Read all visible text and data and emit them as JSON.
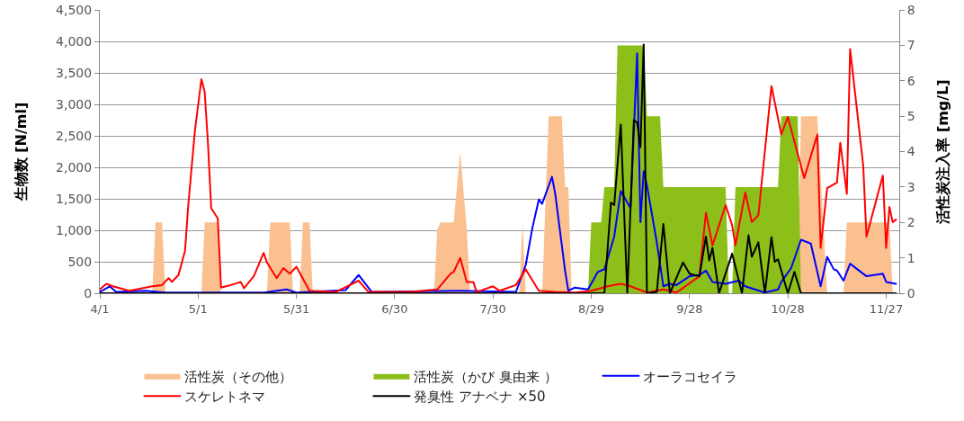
{
  "chart_data": {
    "type": "line",
    "ylabel": "生物数 [N/ml]",
    "y2label": "活性炭注入率 [mg/L]",
    "xlim": [
      "--04-01",
      "--12-01"
    ],
    "xticks": [
      {
        "value": "--04-01",
        "label": "4/1"
      },
      {
        "value": "--05-01",
        "label": "5/1"
      },
      {
        "value": "--05-31",
        "label": "5/31"
      },
      {
        "value": "--06-30",
        "label": "6/30"
      },
      {
        "value": "--07-30",
        "label": "7/30"
      },
      {
        "value": "--08-29",
        "label": "8/29"
      },
      {
        "value": "--09-28",
        "label": "9/28"
      },
      {
        "value": "--10-28",
        "label": "10/28"
      },
      {
        "value": "--11-27",
        "label": "11/27"
      }
    ],
    "ylim": [
      0,
      4500
    ],
    "yticks": [
      0,
      500,
      {
        "value": 1000,
        "label": "1,000"
      },
      {
        "value": 1500,
        "label": "1,500"
      },
      {
        "value": 2000,
        "label": "2,000"
      },
      {
        "value": 2500,
        "label": "2,500"
      },
      {
        "value": 3000,
        "label": "3,000"
      },
      {
        "value": 3500,
        "label": "3,500"
      },
      {
        "value": 4000,
        "label": "4,000"
      },
      {
        "value": 4500,
        "label": "4,500"
      }
    ],
    "y2lim": [
      0,
      8
    ],
    "y2ticks": [
      0,
      1,
      2,
      3,
      4,
      5,
      6,
      7,
      8
    ],
    "grid": "y",
    "legend": "bottom",
    "series": [
      {
        "name": "活性炭（その他）",
        "type": "area",
        "axis": "y2",
        "color": "#fac090",
        "x": [
          "--04-17",
          "--04-18",
          "--04-20",
          "--04-21",
          "--05-02",
          "--05-03",
          "--05-07",
          "--05-08",
          "--05-22",
          "--05-23",
          "--05-29",
          "--05-30",
          "--06-01",
          "--06-02",
          "--06-04",
          "--06-05",
          "--07-12",
          "--07-13",
          "--07-14",
          "--07-18",
          "--07-20",
          "--07-22",
          "--07-23",
          "--08-07",
          "--08-08",
          "--08-09",
          "--08-14",
          "--08-16",
          "--08-20",
          "--08-21",
          "--08-22",
          "--08-23",
          "--10-31",
          "--11-01",
          "--11-06",
          "--11-09",
          "--11-14",
          "--11-15",
          "--11-28",
          "--11-29"
        ],
        "values": [
          0,
          2,
          2,
          0,
          0,
          2,
          2,
          0,
          0,
          2,
          2,
          0,
          0,
          2,
          2,
          0,
          0,
          1.8,
          2,
          2,
          4,
          1.8,
          0,
          0,
          2,
          0,
          0,
          5,
          5,
          3,
          3,
          0,
          0,
          5,
          5,
          0,
          0,
          2,
          2,
          0
        ]
      },
      {
        "name": "活性炭（かび 臭由来 ）",
        "type": "area",
        "axis": "y2",
        "color": "#8dbf1a",
        "x": [
          "--08-28",
          "--08-29",
          "--09-01",
          "--09-02",
          "--09-05",
          "--09-06",
          "--09-14",
          "--09-15",
          "--09-19",
          "--09-20",
          "--10-09",
          "--10-10",
          "--10-11",
          "--10-12",
          "--10-25",
          "--10-26",
          "--10-31",
          "--11-01"
        ],
        "values": [
          0,
          2,
          2,
          3,
          3,
          7,
          7,
          5,
          5,
          3,
          3,
          0,
          0,
          3,
          3,
          5,
          5,
          0
        ]
      },
      {
        "name": "オーラコセイラ",
        "color": "#0000ff",
        "x": [
          "--04-01",
          "--04-04",
          "--04-06",
          "--04-15",
          "--04-21",
          "--05-21",
          "--05-28",
          "--05-31",
          "--06-15",
          "--06-19",
          "--06-23",
          "--07-20",
          "--08-06",
          "--08-09",
          "--08-11",
          "--08-13",
          "--08-14",
          "--08-17",
          "--08-18",
          "--08-21",
          "--08-22",
          "--08-24",
          "--08-28",
          "--08-31",
          "--09-02",
          "--09-05",
          "--09-07",
          "--09-10",
          "--09-12",
          "--09-13",
          "--09-14",
          "--09-15",
          "--09-18",
          "--09-20",
          "--09-22",
          "--09-24",
          "--09-28",
          "--10-01",
          "--10-03",
          "--10-05",
          "--10-09",
          "--10-13",
          "--10-15",
          "--10-21",
          "--10-25",
          "--10-26",
          "--10-29",
          "--11-01",
          "--11-04",
          "--11-07",
          "--11-09",
          "--11-11",
          "--11-12",
          "--11-14",
          "--11-16",
          "--11-21",
          "--11-26",
          "--11-27",
          "--11-30"
        ],
        "values": [
          20,
          110,
          20,
          40,
          10,
          10,
          60,
          10,
          50,
          290,
          20,
          40,
          20,
          450,
          1030,
          1490,
          1420,
          1850,
          1580,
          360,
          40,
          90,
          60,
          340,
          380,
          900,
          1620,
          1350,
          3810,
          1130,
          1940,
          1710,
          810,
          110,
          150,
          130,
          270,
          290,
          360,
          180,
          150,
          200,
          110,
          10,
          60,
          180,
          400,
          850,
          790,
          110,
          580,
          380,
          360,
          200,
          470,
          270,
          310,
          180,
          150
        ]
      },
      {
        "name": "スケレトネマ",
        "color": "#ff0000",
        "x": [
          "--04-01",
          "--04-03",
          "--04-05",
          "--04-10",
          "--04-17",
          "--04-20",
          "--04-22",
          "--04-23",
          "--04-25",
          "--04-27",
          "--04-28",
          "--04-30",
          "--05-02",
          "--05-03",
          "--05-04",
          "--05-05",
          "--05-07",
          "--05-08",
          "--05-11",
          "--05-14",
          "--05-15",
          "--05-18",
          "--05-21",
          "--05-22",
          "--05-25",
          "--05-27",
          "--05-29",
          "--05-31",
          "--06-04",
          "--06-12",
          "--06-19",
          "--06-22",
          "--07-05",
          "--07-13",
          "--07-17",
          "--07-18",
          "--07-20",
          "--07-22",
          "--07-24",
          "--07-25",
          "--07-30",
          "--08-01",
          "--08-06",
          "--08-09",
          "--08-13",
          "--08-18",
          "--08-24",
          "--08-29",
          "--09-03",
          "--09-07",
          "--09-10",
          "--09-15",
          "--09-20",
          "--09-24",
          "--10-01",
          "--10-03",
          "--10-05",
          "--10-09",
          "--10-11",
          "--10-12",
          "--10-15",
          "--10-17",
          "--10-19",
          "--10-23",
          "--10-26",
          "--10-28",
          "--11-02",
          "--11-06",
          "--11-07",
          "--11-09",
          "--11-12",
          "--11-13",
          "--11-15",
          "--11-16",
          "--11-20",
          "--11-21",
          "--11-26",
          "--11-27",
          "--11-28",
          "--11-29",
          "--11-30"
        ],
        "values": [
          60,
          150,
          110,
          40,
          110,
          130,
          240,
          180,
          290,
          670,
          1400,
          2570,
          3400,
          3200,
          2390,
          1350,
          1190,
          90,
          130,
          180,
          80,
          270,
          640,
          490,
          240,
          400,
          310,
          420,
          40,
          20,
          200,
          20,
          20,
          60,
          310,
          340,
          560,
          180,
          180,
          20,
          110,
          40,
          130,
          380,
          40,
          20,
          10,
          40,
          110,
          150,
          110,
          10,
          60,
          10,
          270,
          1280,
          760,
          1400,
          1080,
          760,
          1600,
          1130,
          1240,
          3290,
          2520,
          2800,
          1830,
          2520,
          720,
          1670,
          1760,
          2390,
          1580,
          3880,
          2030,
          900,
          1870,
          720,
          1370,
          1130,
          1170
        ]
      },
      {
        "name": "発臭性 アナベナ ×50",
        "color": "#000000",
        "x": [
          "--04-01",
          "--09-02",
          "--09-04",
          "--09-05",
          "--09-07",
          "--09-09",
          "--09-11",
          "--09-12",
          "--09-13",
          "--09-14",
          "--09-15",
          "--09-18",
          "--09-20",
          "--09-22",
          "--09-26",
          "--09-28",
          "--10-01",
          "--10-03",
          "--10-04",
          "--10-05",
          "--10-07",
          "--10-11",
          "--10-14",
          "--10-16",
          "--10-17",
          "--10-19",
          "--10-21",
          "--10-23",
          "--10-24",
          "--10-25",
          "--10-28",
          "--10-30",
          "--11-01",
          "--11-30"
        ],
        "values": [
          0,
          0,
          1440,
          1400,
          2680,
          0,
          2750,
          2710,
          2320,
          3950,
          0,
          20,
          1100,
          0,
          490,
          310,
          270,
          900,
          520,
          720,
          0,
          630,
          0,
          920,
          580,
          810,
          0,
          890,
          500,
          540,
          0,
          340,
          0,
          0
        ]
      }
    ]
  }
}
